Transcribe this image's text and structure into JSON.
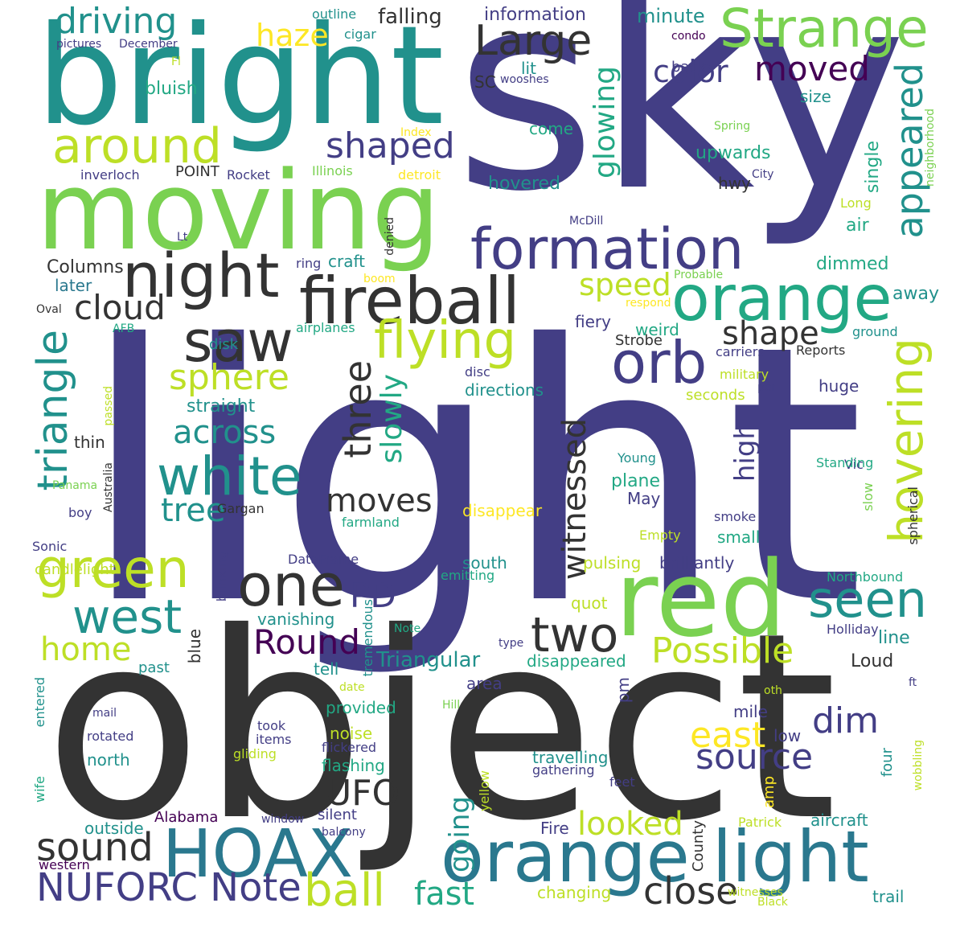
{
  "palette": {
    "dark_purple": "#440154",
    "indigo": "#433e85",
    "blue": "#355f8d",
    "teal_blue": "#2a788e",
    "teal": "#21918c",
    "sea_green": "#22a884",
    "green": "#44bf70",
    "light_green": "#7ad151",
    "lime": "#bddf26",
    "yellow": "#fde725"
  },
  "words": [
    {
      "text": "light"
    },
    {
      "text": "sky"
    },
    {
      "text": "object"
    },
    {
      "text": "bright"
    },
    {
      "text": "moving"
    },
    {
      "text": "red"
    },
    {
      "text": "orange light"
    },
    {
      "text": "fireball"
    },
    {
      "text": "HOAX"
    },
    {
      "text": "orange"
    },
    {
      "text": "night"
    },
    {
      "text": "formation"
    },
    {
      "text": "Strange"
    },
    {
      "text": "around"
    },
    {
      "text": "saw"
    },
    {
      "text": "orb"
    },
    {
      "text": "white"
    },
    {
      "text": "green"
    },
    {
      "text": "one"
    },
    {
      "text": "flying"
    },
    {
      "text": "NUFORC Note"
    },
    {
      "text": "west"
    },
    {
      "text": "two"
    },
    {
      "text": "hovering"
    },
    {
      "text": "triangle"
    },
    {
      "text": "seen"
    },
    {
      "text": "appeared"
    },
    {
      "text": "Large"
    },
    {
      "text": "shaped"
    },
    {
      "text": "driving"
    },
    {
      "text": "ball"
    },
    {
      "text": "sound"
    },
    {
      "text": "close"
    },
    {
      "text": "three"
    },
    {
      "text": "Round"
    },
    {
      "text": "Possible"
    },
    {
      "text": "source"
    },
    {
      "text": "dim"
    },
    {
      "text": "east"
    },
    {
      "text": "sphere"
    },
    {
      "text": "cloud"
    },
    {
      "text": "UFO"
    },
    {
      "text": "moved"
    },
    {
      "text": "color"
    },
    {
      "text": "shape"
    },
    {
      "text": "PD"
    },
    {
      "text": "across"
    },
    {
      "text": "moves"
    },
    {
      "text": "witnessed"
    },
    {
      "text": "haze"
    },
    {
      "text": "home"
    },
    {
      "text": "tree"
    },
    {
      "text": "slowly"
    },
    {
      "text": "glowing"
    },
    {
      "text": "looked"
    },
    {
      "text": "fast"
    },
    {
      "text": "speed"
    },
    {
      "text": "high"
    },
    {
      "text": "going"
    },
    {
      "text": "Triangular"
    },
    {
      "text": "falling"
    },
    {
      "text": "information"
    },
    {
      "text": "minute"
    },
    {
      "text": "back"
    },
    {
      "text": "outline"
    },
    {
      "text": "cigar"
    },
    {
      "text": "pictures"
    },
    {
      "text": "December"
    },
    {
      "text": "condo"
    },
    {
      "text": "Fl"
    },
    {
      "text": "bluish"
    },
    {
      "text": "SC"
    },
    {
      "text": "lit"
    },
    {
      "text": "wooshes"
    },
    {
      "text": "size"
    },
    {
      "text": "come"
    },
    {
      "text": "Index"
    },
    {
      "text": "Spring"
    },
    {
      "text": "upwards"
    },
    {
      "text": "inverloch"
    },
    {
      "text": "POINT"
    },
    {
      "text": "Rocket"
    },
    {
      "text": "Illinois"
    },
    {
      "text": "detroit"
    },
    {
      "text": "hovered"
    },
    {
      "text": "hwy"
    },
    {
      "text": "City"
    },
    {
      "text": "single"
    },
    {
      "text": "neighborhood"
    },
    {
      "text": "Long"
    },
    {
      "text": "air"
    },
    {
      "text": "McDill"
    },
    {
      "text": "Lt"
    },
    {
      "text": "denied"
    },
    {
      "text": "craft"
    },
    {
      "text": "ring"
    },
    {
      "text": "Columns"
    },
    {
      "text": "later"
    },
    {
      "text": "boom"
    },
    {
      "text": "dimmed"
    },
    {
      "text": "Probable"
    },
    {
      "text": "respond"
    },
    {
      "text": "away"
    },
    {
      "text": "Oval"
    },
    {
      "text": "AFB"
    },
    {
      "text": "airplanes"
    },
    {
      "text": "disk"
    },
    {
      "text": "fiery"
    },
    {
      "text": "weird"
    },
    {
      "text": "ground"
    },
    {
      "text": "Strobe"
    },
    {
      "text": "carriers"
    },
    {
      "text": "Reports"
    },
    {
      "text": "disc"
    },
    {
      "text": "military"
    },
    {
      "text": "directions"
    },
    {
      "text": "seconds"
    },
    {
      "text": "per"
    },
    {
      "text": "straight"
    },
    {
      "text": "huge"
    },
    {
      "text": "passed"
    },
    {
      "text": "thin"
    },
    {
      "text": "Young"
    },
    {
      "text": "Vic"
    },
    {
      "text": "Standing"
    },
    {
      "text": "plane"
    },
    {
      "text": "Panama"
    },
    {
      "text": "Gargan"
    },
    {
      "text": "May"
    },
    {
      "text": "disappear"
    },
    {
      "text": "slow"
    },
    {
      "text": "spherical"
    },
    {
      "text": "boy"
    },
    {
      "text": "Australia"
    },
    {
      "text": "farmland"
    },
    {
      "text": "smoke"
    },
    {
      "text": "Empty"
    },
    {
      "text": "small"
    },
    {
      "text": "Sonic"
    },
    {
      "text": "blinking"
    },
    {
      "text": "DataFrame"
    },
    {
      "text": "candlelight"
    },
    {
      "text": "emitting"
    },
    {
      "text": "south"
    },
    {
      "text": "pulsing"
    },
    {
      "text": "brilliantly"
    },
    {
      "text": "Northbound"
    },
    {
      "text": "quot"
    },
    {
      "text": "vanishing"
    },
    {
      "text": "tremendous"
    },
    {
      "text": "Note"
    },
    {
      "text": "Holliday"
    },
    {
      "text": "line"
    },
    {
      "text": "type"
    },
    {
      "text": "past"
    },
    {
      "text": "blue"
    },
    {
      "text": "tell"
    },
    {
      "text": "disappeared"
    },
    {
      "text": "Loud"
    },
    {
      "text": "area"
    },
    {
      "text": "pm"
    },
    {
      "text": "date"
    },
    {
      "text": "oth"
    },
    {
      "text": "ft"
    },
    {
      "text": "entered"
    },
    {
      "text": "Hill"
    },
    {
      "text": "provided"
    },
    {
      "text": "mail"
    },
    {
      "text": "took"
    },
    {
      "text": "mile"
    },
    {
      "text": "rotated"
    },
    {
      "text": "items"
    },
    {
      "text": "noise"
    },
    {
      "text": "low"
    },
    {
      "text": "north"
    },
    {
      "text": "gliding"
    },
    {
      "text": "flickered"
    },
    {
      "text": "travelling"
    },
    {
      "text": "four"
    },
    {
      "text": "wobbling"
    },
    {
      "text": "flashing"
    },
    {
      "text": "gathering"
    },
    {
      "text": "feet"
    },
    {
      "text": "amp"
    },
    {
      "text": "wife"
    },
    {
      "text": "yellow"
    },
    {
      "text": "Alabama"
    },
    {
      "text": "window"
    },
    {
      "text": "silent"
    },
    {
      "text": "Fire"
    },
    {
      "text": "Patrick"
    },
    {
      "text": "aircraft"
    },
    {
      "text": "outside"
    },
    {
      "text": "balcony"
    },
    {
      "text": "County"
    },
    {
      "text": "western"
    },
    {
      "text": "changing"
    },
    {
      "text": "witnesses"
    },
    {
      "text": "Black"
    },
    {
      "text": "trail"
    }
  ]
}
